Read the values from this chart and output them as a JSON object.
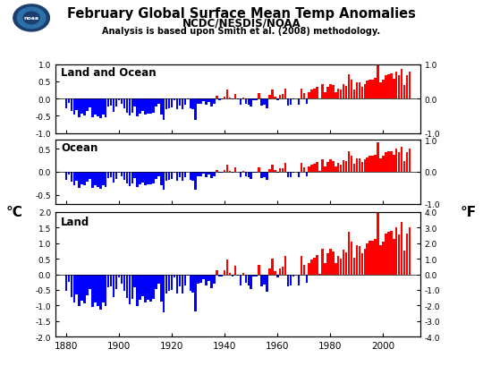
{
  "title_line1": "February Global Surface Mean Temp Anomalies",
  "title_line2": "NCDC/NESDIS/NOAA",
  "subtitle": "Analysis is based upon Smith et al. (2008) methodology.",
  "years": [
    1880,
    1881,
    1882,
    1883,
    1884,
    1885,
    1886,
    1887,
    1888,
    1889,
    1890,
    1891,
    1892,
    1893,
    1894,
    1895,
    1896,
    1897,
    1898,
    1899,
    1900,
    1901,
    1902,
    1903,
    1904,
    1905,
    1906,
    1907,
    1908,
    1909,
    1910,
    1911,
    1912,
    1913,
    1914,
    1915,
    1916,
    1917,
    1918,
    1919,
    1920,
    1921,
    1922,
    1923,
    1924,
    1925,
    1926,
    1927,
    1928,
    1929,
    1930,
    1931,
    1932,
    1933,
    1934,
    1935,
    1936,
    1937,
    1938,
    1939,
    1940,
    1941,
    1942,
    1943,
    1944,
    1945,
    1946,
    1947,
    1948,
    1949,
    1950,
    1951,
    1952,
    1953,
    1954,
    1955,
    1956,
    1957,
    1958,
    1959,
    1960,
    1961,
    1962,
    1963,
    1964,
    1965,
    1966,
    1967,
    1968,
    1969,
    1970,
    1971,
    1972,
    1973,
    1974,
    1975,
    1976,
    1977,
    1978,
    1979,
    1980,
    1981,
    1982,
    1983,
    1984,
    1985,
    1986,
    1987,
    1988,
    1989,
    1990,
    1991,
    1992,
    1993,
    1994,
    1995,
    1996,
    1997,
    1998,
    1999,
    2000,
    2001,
    2002,
    2003,
    2004,
    2005,
    2006,
    2007,
    2008,
    2009,
    2010
  ],
  "land_ocean": [
    -0.28,
    -0.12,
    -0.37,
    -0.46,
    -0.33,
    -0.53,
    -0.44,
    -0.48,
    -0.35,
    -0.25,
    -0.55,
    -0.47,
    -0.52,
    -0.58,
    -0.47,
    -0.53,
    -0.22,
    -0.2,
    -0.38,
    -0.24,
    -0.05,
    -0.15,
    -0.28,
    -0.4,
    -0.5,
    -0.41,
    -0.22,
    -0.52,
    -0.43,
    -0.37,
    -0.46,
    -0.43,
    -0.45,
    -0.41,
    -0.24,
    -0.15,
    -0.46,
    -0.63,
    -0.32,
    -0.28,
    -0.26,
    -0.05,
    -0.32,
    -0.2,
    -0.32,
    -0.19,
    -0.02,
    -0.28,
    -0.3,
    -0.62,
    -0.15,
    -0.14,
    -0.08,
    -0.18,
    -0.11,
    -0.23,
    -0.15,
    0.07,
    -0.04,
    -0.03,
    0.06,
    0.25,
    0.02,
    -0.03,
    0.14,
    -0.02,
    -0.18,
    0.02,
    -0.14,
    -0.19,
    -0.24,
    -0.04,
    -0.04,
    0.16,
    -0.21,
    -0.17,
    -0.29,
    0.1,
    0.26,
    0.05,
    -0.05,
    0.1,
    0.13,
    0.3,
    -0.2,
    -0.18,
    -0.03,
    -0.01,
    -0.18,
    0.3,
    0.15,
    -0.14,
    0.19,
    0.25,
    0.28,
    0.33,
    0.01,
    0.42,
    0.19,
    0.35,
    0.43,
    0.38,
    0.19,
    0.3,
    0.26,
    0.41,
    0.37,
    0.71,
    0.55,
    0.27,
    0.48,
    0.46,
    0.35,
    0.43,
    0.51,
    0.56,
    0.56,
    0.59,
    1.03,
    0.48,
    0.54,
    0.68,
    0.71,
    0.72,
    0.58,
    0.79,
    0.67,
    0.87,
    0.39,
    0.68,
    0.79
  ],
  "ocean": [
    -0.18,
    -0.07,
    -0.22,
    -0.3,
    -0.2,
    -0.35,
    -0.28,
    -0.3,
    -0.22,
    -0.15,
    -0.36,
    -0.3,
    -0.33,
    -0.37,
    -0.29,
    -0.34,
    -0.13,
    -0.12,
    -0.24,
    -0.15,
    -0.03,
    -0.09,
    -0.17,
    -0.25,
    -0.31,
    -0.25,
    -0.14,
    -0.33,
    -0.27,
    -0.23,
    -0.29,
    -0.27,
    -0.28,
    -0.26,
    -0.15,
    -0.09,
    -0.29,
    -0.4,
    -0.2,
    -0.18,
    -0.16,
    -0.03,
    -0.2,
    -0.12,
    -0.2,
    -0.12,
    -0.01,
    -0.18,
    -0.19,
    -0.39,
    -0.09,
    -0.09,
    -0.05,
    -0.11,
    -0.07,
    -0.14,
    -0.09,
    0.04,
    -0.02,
    -0.02,
    0.04,
    0.16,
    0.01,
    -0.02,
    0.09,
    -0.01,
    -0.11,
    0.01,
    -0.09,
    -0.12,
    -0.15,
    -0.02,
    -0.03,
    0.1,
    -0.13,
    -0.11,
    -0.18,
    0.06,
    0.16,
    0.03,
    -0.03,
    0.07,
    0.08,
    0.19,
    -0.12,
    -0.11,
    -0.02,
    -0.01,
    -0.11,
    0.19,
    0.09,
    -0.09,
    0.12,
    0.16,
    0.18,
    0.21,
    0.01,
    0.27,
    0.12,
    0.22,
    0.27,
    0.24,
    0.12,
    0.19,
    0.16,
    0.26,
    0.23,
    0.45,
    0.35,
    0.17,
    0.3,
    0.29,
    0.22,
    0.27,
    0.32,
    0.35,
    0.35,
    0.37,
    0.65,
    0.3,
    0.34,
    0.43,
    0.45,
    0.45,
    0.36,
    0.5,
    0.42,
    0.55,
    0.24,
    0.43,
    0.5
  ],
  "land": [
    -0.54,
    -0.24,
    -0.72,
    -0.89,
    -0.64,
    -1.02,
    -0.85,
    -0.93,
    -0.68,
    -0.48,
    -1.06,
    -0.9,
    -1.01,
    -1.12,
    -0.9,
    -1.02,
    -0.43,
    -0.39,
    -0.74,
    -0.47,
    -0.1,
    -0.29,
    -0.54,
    -0.77,
    -0.96,
    -0.79,
    -0.42,
    -1.01,
    -0.83,
    -0.71,
    -0.89,
    -0.83,
    -0.87,
    -0.79,
    -0.46,
    -0.29,
    -0.88,
    -1.22,
    -0.62,
    -0.54,
    -0.5,
    -0.1,
    -0.62,
    -0.39,
    -0.62,
    -0.37,
    -0.04,
    -0.54,
    -0.58,
    -1.2,
    -0.29,
    -0.27,
    -0.16,
    -0.35,
    -0.21,
    -0.44,
    -0.29,
    0.14,
    -0.08,
    -0.06,
    0.12,
    0.48,
    0.04,
    -0.06,
    0.27,
    -0.04,
    -0.35,
    0.04,
    -0.27,
    -0.37,
    -0.46,
    -0.08,
    -0.08,
    0.31,
    -0.4,
    -0.33,
    -0.56,
    0.19,
    0.5,
    0.1,
    -0.1,
    0.19,
    0.25,
    0.58,
    -0.39,
    -0.35,
    -0.06,
    -0.02,
    -0.35,
    0.58,
    0.29,
    -0.27,
    0.37,
    0.48,
    0.54,
    0.63,
    0.02,
    0.81,
    0.37,
    0.67,
    0.83,
    0.73,
    0.37,
    0.58,
    0.5,
    0.79,
    0.71,
    1.37,
    1.06,
    0.52,
    0.92,
    0.89,
    0.67,
    0.83,
    0.98,
    1.08,
    1.08,
    1.14,
    1.98,
    0.92,
    1.04,
    1.31,
    1.37,
    1.39,
    1.12,
    1.52,
    1.29,
    1.68,
    0.75,
    1.31,
    1.52
  ],
  "xlim": [
    1876,
    2014
  ],
  "color_pos": "#ff0000",
  "color_neg": "#0000ff",
  "bg_color": "#ffffff",
  "label_celsius": "°C",
  "label_fahrenheit": "°F",
  "label1": "Land and Ocean",
  "label2": "Ocean",
  "label3": "Land",
  "xticks": [
    1880,
    1900,
    1920,
    1940,
    1960,
    1980,
    2000
  ]
}
